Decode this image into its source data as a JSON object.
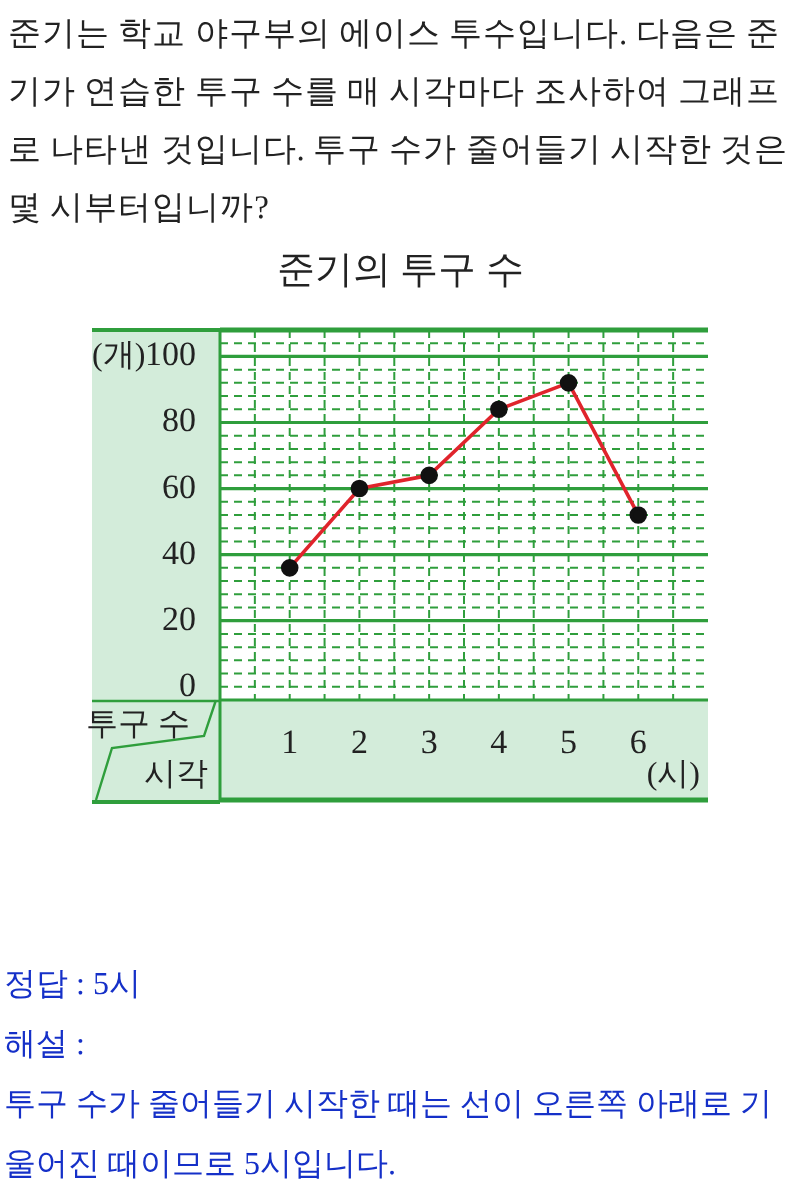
{
  "chart_data": {
    "type": "line",
    "title": "준기의 투구 수",
    "xlabel": "시각",
    "ylabel": "투구 수",
    "annotations": [
      "준기는 학교 야구부의 에이스 투수입니다. 다음은 준기가 연습한 투구 수를 매 시각마다 조사하여 그래프로 나타낸 것입니다. 투구 수가 줄어들기 시작한 것은 몇 시부터입니까?",
      "(개)",
      "(시)",
      "정답 : 5시",
      "해설 :",
      "투구 수가 줄어들기 시작한 때는 선이 오른쪽 아래로 기울어진 때이므로 5시입니다."
    ],
    "x": [
      1,
      2,
      3,
      4,
      5,
      6
    ],
    "xlim": [
      0,
      7
    ],
    "xticks": [
      1,
      2,
      3,
      4,
      5,
      6
    ],
    "ylim": [
      -4,
      108
    ],
    "yticks": [
      0,
      20,
      40,
      60,
      80,
      100
    ],
    "series": [
      {
        "color": "#e0242c",
        "values": [
          36,
          60,
          64,
          84,
          92,
          52
        ]
      }
    ],
    "grid": true,
    "marker": "circle",
    "line_style": "solid",
    "legend": false
  }
}
